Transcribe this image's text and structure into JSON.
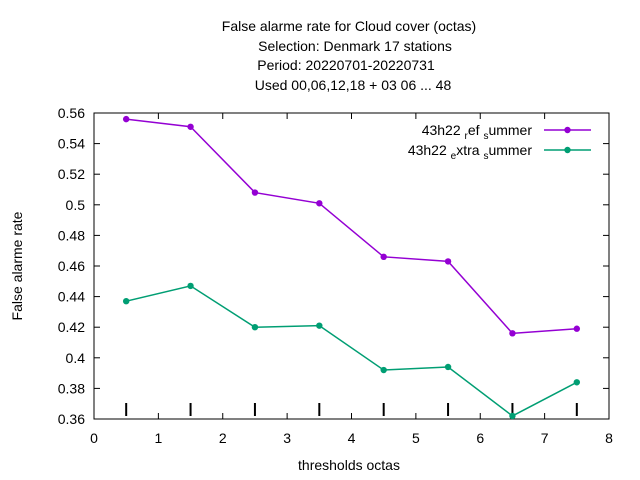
{
  "chart_data": {
    "type": "line",
    "title_lines": [
      "False alarme rate  for Cloud cover (octas)",
      "Selection: Denmark     17 stations",
      "Period: 20220701-20220731",
      "Used  00,06,12,18  + 03 06 ... 48"
    ],
    "xlabel": "thresholds octas",
    "ylabel": "False alarme rate",
    "xlim": [
      0,
      8
    ],
    "ylim": [
      0.36,
      0.56
    ],
    "xticks": [
      "0",
      "1",
      "2",
      "3",
      "4",
      "5",
      "6",
      "7",
      "8"
    ],
    "yticks": [
      "0.36",
      "0.38",
      "0.4",
      "0.42",
      "0.44",
      "0.46",
      "0.48",
      "0.5",
      "0.52",
      "0.54",
      "0.56"
    ],
    "grid": false,
    "legend_position": "top-right",
    "x": [
      0.5,
      1.5,
      2.5,
      3.5,
      4.5,
      5.5,
      6.5,
      7.5
    ],
    "series": [
      {
        "name_parts": [
          "43h22",
          "r",
          "ef",
          "s",
          "ummer"
        ],
        "color": "#9400d3",
        "values": [
          0.556,
          0.551,
          0.508,
          0.501,
          0.466,
          0.463,
          0.416,
          0.419
        ]
      },
      {
        "name_parts": [
          "43h22",
          "e",
          "xtra",
          "s",
          "ummer"
        ],
        "color": "#009e73",
        "values": [
          0.437,
          0.447,
          0.42,
          0.421,
          0.392,
          0.394,
          0.362,
          0.384
        ]
      }
    ]
  }
}
